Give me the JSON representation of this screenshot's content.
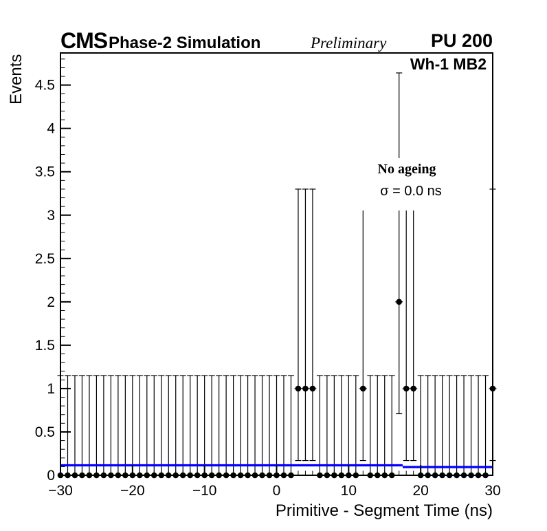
{
  "header": {
    "experiment": "CMS",
    "subtitle": "Phase-2 Simulation",
    "status": "Preliminary",
    "pileup_label": "PU 200"
  },
  "plot": {
    "chamber_label": "Wh-1 MB2",
    "annotation": {
      "line1": "No ageing",
      "line2": "σ = 0.0 ns"
    },
    "x_axis_title": "Primitive - Segment Time (ns)",
    "y_axis_title": "Events"
  },
  "chart_data": {
    "type": "scatter",
    "title": "",
    "xlabel": "Primitive - Segment Time (ns)",
    "ylabel": "Events",
    "xlim": [
      -30,
      30
    ],
    "ylim": [
      0,
      4.87
    ],
    "grid": false,
    "x_major_ticks": [
      -30,
      -20,
      -10,
      0,
      10,
      20,
      30
    ],
    "x_tick_labels": [
      "−30",
      "−20",
      "−10",
      "0",
      "10",
      "20",
      "30"
    ],
    "x_minor_step": 1,
    "y_major_ticks": [
      0,
      0.5,
      1,
      1.5,
      2,
      2.5,
      3,
      3.5,
      4,
      4.5
    ],
    "y_tick_labels": [
      "0",
      "0.5",
      "1",
      "1.5",
      "2",
      "2.5",
      "3",
      "3.5",
      "4",
      "4.5"
    ],
    "y_minor_step": 0.1,
    "marker_color": "#000000",
    "x_start": -30,
    "x_step": 1,
    "counts": [
      0,
      0,
      0,
      0,
      0,
      0,
      0,
      0,
      0,
      0,
      0,
      0,
      0,
      0,
      0,
      0,
      0,
      0,
      0,
      0,
      0,
      0,
      0,
      0,
      0,
      0,
      0,
      0,
      0,
      0,
      0,
      0,
      0,
      1,
      1,
      1,
      0,
      0,
      0,
      0,
      0,
      0,
      1,
      0,
      0,
      0,
      0,
      2,
      1,
      1,
      0,
      0,
      0,
      0,
      0,
      0,
      0,
      0,
      0,
      0,
      1
    ],
    "poisson_errors": {
      "0": {
        "low": 0,
        "high": 1.15
      },
      "1": {
        "low": 0.83,
        "high": 2.3
      },
      "2": {
        "low": 1.29,
        "high": 2.64
      }
    },
    "fit_line": {
      "color": "#0000ff",
      "segments": [
        {
          "x1": -30,
          "x2": 17.5,
          "y": 0.115
        },
        {
          "x1": 17.5,
          "x2": 30,
          "y": 0.095
        }
      ]
    }
  }
}
